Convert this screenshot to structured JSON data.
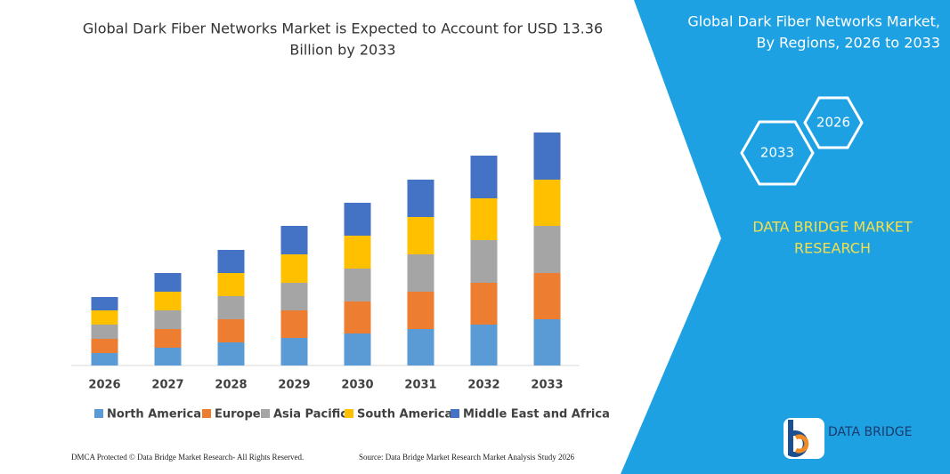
{
  "chart_data": {
    "type": "stacked_bar",
    "title": [
      "Global Dark Fiber Networks Market is Expected to Account for USD 13.36",
      "Billion by 2033"
    ],
    "categories": [
      "2026",
      "2027",
      "2028",
      "2029",
      "2030",
      "2031",
      "2032",
      "2033"
    ],
    "series": [
      {
        "name": "North America",
        "color": "#5b9bd5",
        "values": [
          14,
          20,
          26,
          31,
          36,
          41,
          46,
          52
        ]
      },
      {
        "name": "Europe",
        "color": "#ed7d31",
        "values": [
          16,
          21,
          26,
          31,
          36,
          42,
          47,
          52
        ]
      },
      {
        "name": "Asia Pacific",
        "color": "#a5a5a5",
        "values": [
          16,
          21,
          26,
          31,
          37,
          42,
          48,
          53
        ]
      },
      {
        "name": "South America",
        "color": "#ffc000",
        "values": [
          16,
          21,
          26,
          32,
          37,
          42,
          47,
          52
        ]
      },
      {
        "name": "Middle East and Africa",
        "color": "#4472c4",
        "values": [
          15,
          21,
          26,
          32,
          37,
          42,
          48,
          53
        ]
      }
    ],
    "ylim": [
      0,
      270
    ]
  },
  "side_panel": {
    "title": [
      "Global Dark Fiber Networks Market,",
      "By Regions, 2026 to 2033"
    ],
    "hexagons": [
      "2033",
      "2026"
    ],
    "brand": [
      "DATA BRIDGE MARKET",
      "RESEARCH"
    ],
    "logo": "DATA BRIDGE"
  },
  "footer": {
    "left": "DMCA Protected © Data Bridge Market Research-  All Rights Reserved.",
    "right": "Source: Data Bridge Market Research  Market Analysis Study 2026"
  }
}
